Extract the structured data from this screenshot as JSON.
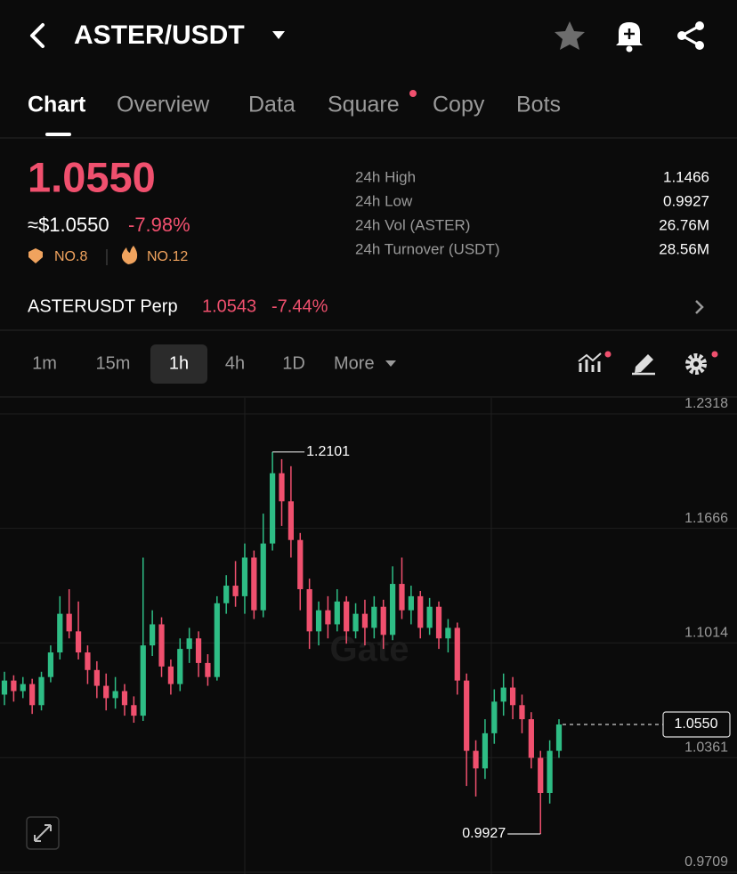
{
  "header": {
    "title": "ASTER/USDT"
  },
  "tabs": [
    "Chart",
    "Overview",
    "Data",
    "Square",
    "Copy",
    "Bots"
  ],
  "ticker": {
    "price": "1.0550",
    "usd_price": "≈$1.0550",
    "change": "-7.98%",
    "badges": [
      "NO.8",
      "NO.12"
    ],
    "stats": [
      {
        "label": "24h High",
        "value": "1.1466"
      },
      {
        "label": "24h Low",
        "value": "0.9927"
      },
      {
        "label": "24h Vol (ASTER)",
        "value": "26.76M"
      },
      {
        "label": "24h Turnover (USDT)",
        "value": "28.56M"
      }
    ]
  },
  "perp": {
    "name": "ASTERUSDT Perp",
    "price": "1.0543",
    "change": "-7.44%"
  },
  "intervals": [
    "1m",
    "15m",
    "1h",
    "4h",
    "1D",
    "More"
  ],
  "chart_data": {
    "type": "candlestick",
    "watermark": "Gate",
    "up_color": "#2ebd85",
    "down_color": "#f0506e",
    "open": [
      1.072,
      1.08,
      1.074,
      1.078,
      1.066,
      1.082,
      1.096,
      1.118,
      1.108,
      1.096,
      1.086,
      1.077,
      1.07,
      1.074,
      1.066,
      1.06,
      1.1,
      1.112,
      1.088,
      1.078,
      1.098,
      1.104,
      1.09,
      1.082,
      1.124,
      1.134,
      1.128,
      1.15,
      1.12,
      1.158,
      1.198,
      1.182,
      1.16,
      1.132,
      1.108,
      1.12,
      1.112,
      1.125,
      1.108,
      1.118,
      1.11,
      1.122,
      1.106,
      1.135,
      1.12,
      1.128,
      1.11,
      1.122,
      1.104,
      1.11,
      1.08,
      1.04,
      1.03,
      1.05,
      1.068,
      1.076,
      1.066,
      1.058,
      1.036,
      1.016,
      1.04
    ],
    "high": [
      1.085,
      1.083,
      1.082,
      1.081,
      1.085,
      1.1,
      1.128,
      1.132,
      1.125,
      1.1,
      1.091,
      1.084,
      1.082,
      1.078,
      1.071,
      1.15,
      1.12,
      1.116,
      1.092,
      1.104,
      1.11,
      1.108,
      1.095,
      1.128,
      1.14,
      1.148,
      1.158,
      1.154,
      1.175,
      1.2101,
      1.206,
      1.202,
      1.164,
      1.138,
      1.125,
      1.128,
      1.132,
      1.128,
      1.124,
      1.126,
      1.128,
      1.126,
      1.145,
      1.15,
      1.134,
      1.131,
      1.127,
      1.125,
      1.115,
      1.113,
      1.084,
      1.046,
      1.058,
      1.075,
      1.084,
      1.082,
      1.072,
      1.062,
      1.04,
      1.046,
      1.058
    ],
    "low": [
      1.066,
      1.068,
      1.07,
      1.061,
      1.063,
      1.079,
      1.092,
      1.104,
      1.092,
      1.078,
      1.07,
      1.063,
      1.064,
      1.06,
      1.056,
      1.057,
      1.094,
      1.082,
      1.072,
      1.074,
      1.09,
      1.082,
      1.077,
      1.08,
      1.118,
      1.122,
      1.118,
      1.115,
      1.116,
      1.154,
      1.168,
      1.15,
      1.12,
      1.098,
      1.1,
      1.104,
      1.108,
      1.101,
      1.104,
      1.1,
      1.104,
      1.098,
      1.103,
      1.115,
      1.112,
      1.104,
      1.106,
      1.098,
      1.096,
      1.072,
      1.02,
      1.014,
      1.024,
      1.044,
      1.06,
      1.058,
      1.05,
      1.03,
      0.9927,
      1.01,
      1.036
    ],
    "close": [
      1.08,
      1.074,
      1.078,
      1.066,
      1.082,
      1.096,
      1.118,
      1.108,
      1.096,
      1.086,
      1.077,
      1.07,
      1.074,
      1.066,
      1.06,
      1.1,
      1.112,
      1.088,
      1.078,
      1.098,
      1.104,
      1.09,
      1.082,
      1.124,
      1.134,
      1.128,
      1.15,
      1.12,
      1.158,
      1.198,
      1.182,
      1.16,
      1.132,
      1.108,
      1.12,
      1.112,
      1.125,
      1.108,
      1.118,
      1.11,
      1.122,
      1.106,
      1.135,
      1.12,
      1.128,
      1.11,
      1.122,
      1.104,
      1.11,
      1.08,
      1.04,
      1.03,
      1.05,
      1.068,
      1.076,
      1.066,
      1.058,
      1.036,
      1.016,
      1.04,
      1.055
    ],
    "ylim": [
      0.9699,
      1.2409
    ],
    "yticks": [
      1.2318,
      1.1666,
      1.1014,
      1.0361,
      0.9709
    ],
    "grid": true,
    "high_marker": 1.2101,
    "low_marker": 0.9927,
    "last_price": {
      "value": 1.055,
      "label": "1.0550"
    }
  }
}
